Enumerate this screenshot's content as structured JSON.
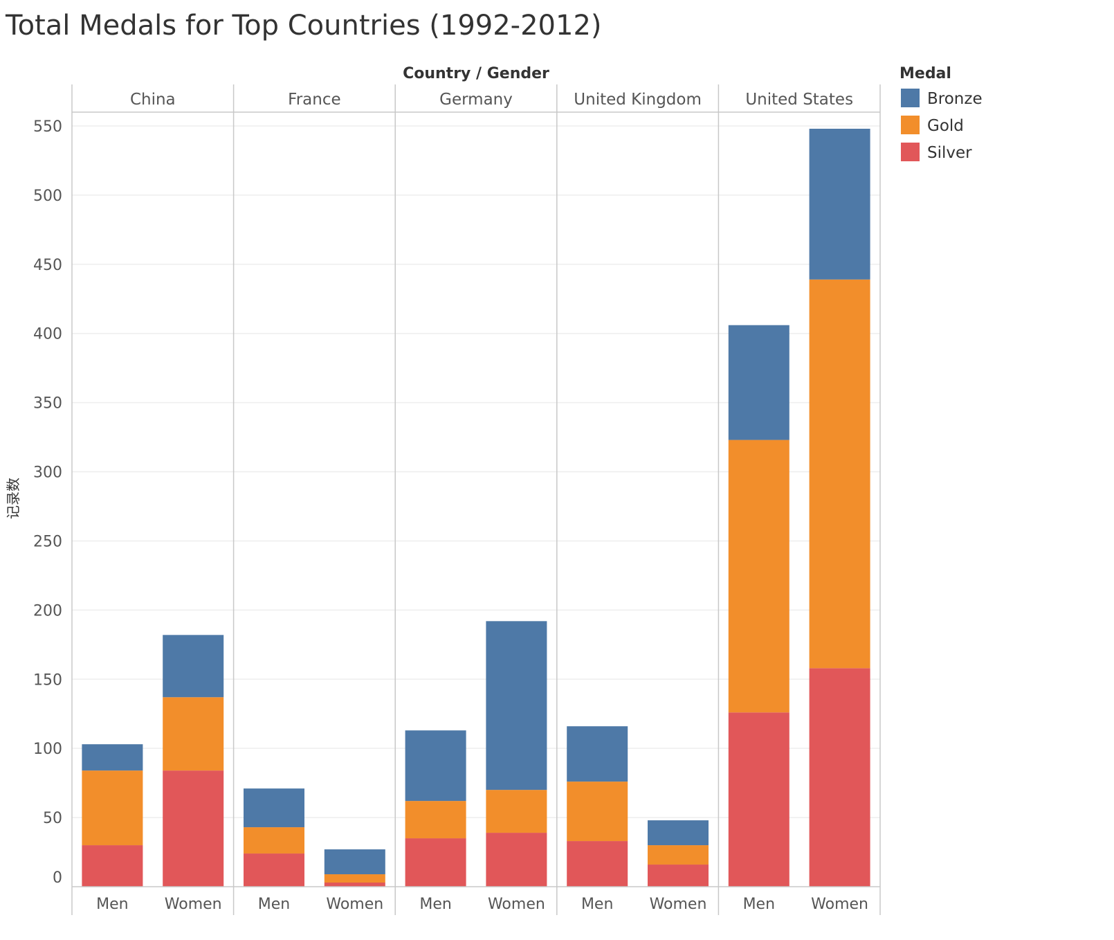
{
  "chart_data": {
    "type": "bar",
    "stacked": true,
    "title": "Total Medals for Top Countries (1992-2012)",
    "column_header_title": "Country / Gender",
    "ylabel": "记录数",
    "ylim": [
      0,
      560
    ],
    "yticks": [
      0,
      50,
      100,
      150,
      200,
      250,
      300,
      350,
      400,
      450,
      500,
      550
    ],
    "grid": true,
    "legend": {
      "title": "Medal",
      "position": "top-right"
    },
    "panels": [
      "China",
      "France",
      "Germany",
      "United Kingdom",
      "United States"
    ],
    "subcategories": [
      "Men",
      "Women"
    ],
    "series": [
      {
        "name": "Silver",
        "color": "#e15759",
        "values": [
          [
            30,
            84
          ],
          [
            24,
            3
          ],
          [
            35,
            39
          ],
          [
            33,
            16
          ],
          [
            126,
            158
          ]
        ]
      },
      {
        "name": "Gold",
        "color": "#f28e2b",
        "values": [
          [
            54,
            53
          ],
          [
            19,
            6
          ],
          [
            27,
            31
          ],
          [
            43,
            14
          ],
          [
            197,
            281
          ]
        ]
      },
      {
        "name": "Bronze",
        "color": "#4e79a7",
        "values": [
          [
            19,
            45
          ],
          [
            28,
            18
          ],
          [
            51,
            122
          ],
          [
            40,
            18
          ],
          [
            83,
            109
          ]
        ]
      }
    ],
    "legend_order": [
      "Bronze",
      "Gold",
      "Silver"
    ]
  }
}
